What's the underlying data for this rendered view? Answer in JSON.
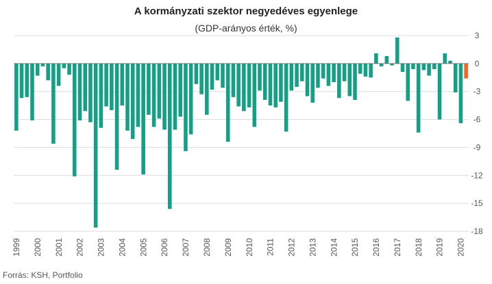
{
  "chart_data": {
    "type": "bar",
    "title": "A kormányzati szektor negyedéves egyenlege",
    "subtitle": "(GDP-arányos érték, %)",
    "source": "Forrás: KSH, Portfolio",
    "ylim": [
      -18,
      3
    ],
    "y_ticks": [
      3,
      0,
      -3,
      -6,
      -9,
      -12,
      -15,
      -18
    ],
    "grid": true,
    "x_tick_labels": [
      "1999",
      "2000",
      "2001",
      "2002",
      "2003",
      "2004",
      "2005",
      "2006",
      "2007",
      "2008",
      "2009",
      "2010",
      "2011",
      "2012",
      "2013",
      "2014",
      "2015",
      "2016",
      "2017",
      "2018",
      "2019",
      "2020"
    ],
    "colors": {
      "default": "#15a086",
      "highlight": "#f26522"
    },
    "highlight_last": true,
    "values": [
      -7.2,
      -3.7,
      -3.6,
      -6.1,
      -1.3,
      -0.3,
      -1.8,
      -8.6,
      -2.4,
      -0.5,
      -1.2,
      -12.1,
      -6.1,
      -5.1,
      -6.3,
      -17.6,
      -6.9,
      -4.6,
      -5.0,
      -11.4,
      -4.5,
      -7.2,
      -8.1,
      -6.8,
      -11.9,
      -5.5,
      -6.8,
      -5.9,
      -7.1,
      -15.6,
      -7.1,
      -5.7,
      -9.4,
      -7.6,
      -2.2,
      -3.3,
      -5.5,
      -2.8,
      -1.8,
      -2.6,
      -8.4,
      -3.6,
      -4.6,
      -5.1,
      -4.7,
      -6.8,
      -2.9,
      -3.9,
      -4.5,
      -4.7,
      -4.1,
      -7.3,
      -2.9,
      -2.5,
      -1.9,
      -3.5,
      -4.2,
      -2.6,
      -1.6,
      -2.4,
      -2.0,
      -3.7,
      -1.9,
      -3.5,
      -3.9,
      -1.1,
      -1.4,
      -1.5,
      1.1,
      -0.3,
      0.8,
      -0.2,
      2.8,
      -0.9,
      -4.0,
      -0.6,
      -7.4,
      -0.7,
      -1.3,
      -0.6,
      -6.0,
      1.1,
      0.3,
      -3.1,
      -6.4,
      -1.6
    ]
  }
}
